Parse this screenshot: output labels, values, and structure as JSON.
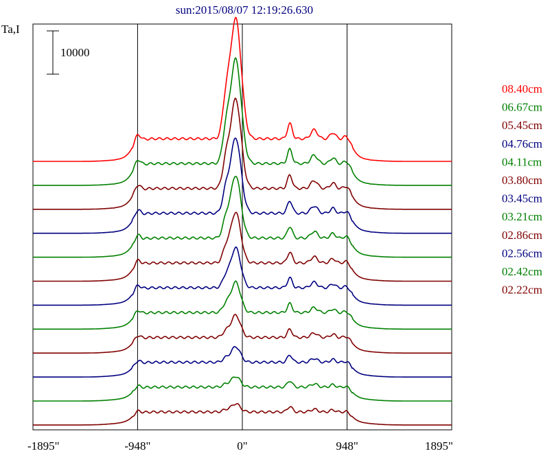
{
  "chart_data": {
    "type": "line",
    "title": "sun:2015/08/07 12:19:26.630",
    "ylabel": "Ta,I",
    "scale_bar_label": "10000",
    "scale_bar_value": 10000,
    "xlim": [
      -1895,
      1895
    ],
    "x_ticks": [
      {
        "value": -1895,
        "label": "-1895\""
      },
      {
        "value": -948,
        "label": "-948\""
      },
      {
        "value": 0,
        "label": "0\""
      },
      {
        "value": 948,
        "label": "948\""
      },
      {
        "value": 1895,
        "label": "1895\""
      }
    ],
    "vertical_lines": [
      -948,
      0,
      948
    ],
    "colors": {
      "red": "#ff0000",
      "green": "#008000",
      "darkred": "#800000",
      "blue": "#000080"
    },
    "legend_position": "right",
    "series": [
      {
        "name": "08.40cm",
        "color": "#ff0000"
      },
      {
        "name": "06.67cm",
        "color": "#008000"
      },
      {
        "name": "05.45cm",
        "color": "#800000"
      },
      {
        "name": "04.76cm",
        "color": "#000080"
      },
      {
        "name": "04.11cm",
        "color": "#008000"
      },
      {
        "name": "03.80cm",
        "color": "#800000"
      },
      {
        "name": "03.45cm",
        "color": "#000080"
      },
      {
        "name": "03.21cm",
        "color": "#008000"
      },
      {
        "name": "02.86cm",
        "color": "#800000"
      },
      {
        "name": "02.56cm",
        "color": "#000080"
      },
      {
        "name": "02.42cm",
        "color": "#008000"
      },
      {
        "name": "02.22cm",
        "color": "#800000"
      }
    ]
  }
}
